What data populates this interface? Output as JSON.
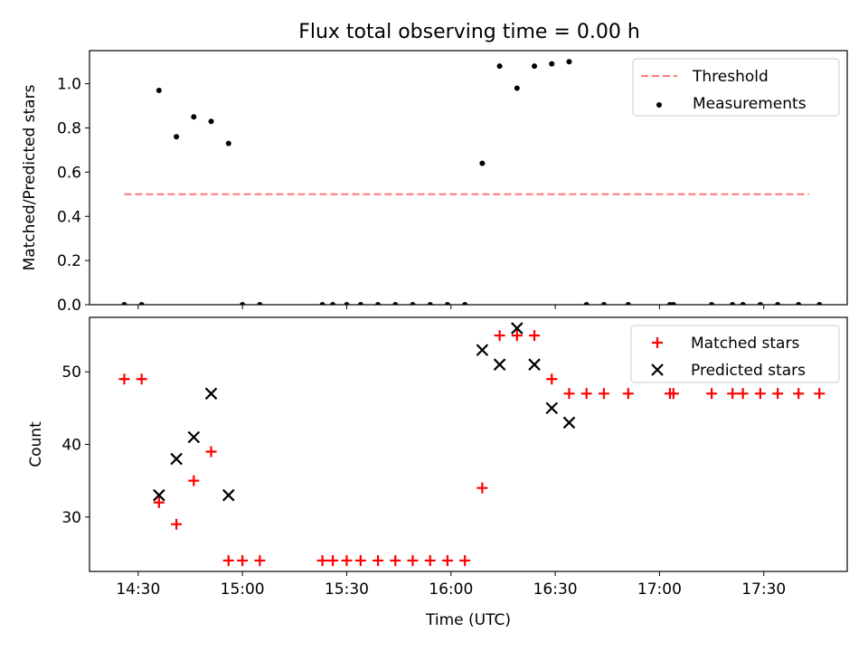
{
  "title": "Flux total observing time = 0.00 h",
  "xlabel": "Time (UTC)",
  "x_tick_labels": [
    "14:30",
    "15:00",
    "15:30",
    "16:00",
    "16:30",
    "17:00",
    "17:30"
  ],
  "chart_data": [
    {
      "type": "scatter",
      "ylabel": "Matched/Predicted stars",
      "xlim": [
        "14:16",
        "17:54"
      ],
      "ylim": [
        0,
        1.15
      ],
      "y_ticks": [
        0.0,
        0.2,
        0.4,
        0.6,
        0.8,
        1.0
      ],
      "legend_position": "top-right",
      "series": [
        {
          "name": "Threshold",
          "style": "dashed-line",
          "color": "#ff7f7f",
          "points": [
            {
              "x": "14:26",
              "y": 0.5
            },
            {
              "x": "17:43",
              "y": 0.5
            }
          ]
        },
        {
          "name": "Measurements",
          "style": "dot",
          "color": "#000000",
          "points": [
            {
              "x": "14:26",
              "y": 0.0
            },
            {
              "x": "14:31",
              "y": 0.0
            },
            {
              "x": "14:36",
              "y": 0.97
            },
            {
              "x": "14:41",
              "y": 0.76
            },
            {
              "x": "14:46",
              "y": 0.85
            },
            {
              "x": "14:51",
              "y": 0.83
            },
            {
              "x": "14:56",
              "y": 0.73
            },
            {
              "x": "15:00",
              "y": 0.0
            },
            {
              "x": "15:05",
              "y": 0.0
            },
            {
              "x": "15:23",
              "y": 0.0
            },
            {
              "x": "15:26",
              "y": 0.0
            },
            {
              "x": "15:30",
              "y": 0.0
            },
            {
              "x": "15:34",
              "y": 0.0
            },
            {
              "x": "15:39",
              "y": 0.0
            },
            {
              "x": "15:44",
              "y": 0.0
            },
            {
              "x": "15:49",
              "y": 0.0
            },
            {
              "x": "15:54",
              "y": 0.0
            },
            {
              "x": "15:59",
              "y": 0.0
            },
            {
              "x": "16:04",
              "y": 0.0
            },
            {
              "x": "16:09",
              "y": 0.64
            },
            {
              "x": "16:14",
              "y": 1.08
            },
            {
              "x": "16:19",
              "y": 0.98
            },
            {
              "x": "16:24",
              "y": 1.08
            },
            {
              "x": "16:29",
              "y": 1.09
            },
            {
              "x": "16:34",
              "y": 1.1
            },
            {
              "x": "16:39",
              "y": 0.0
            },
            {
              "x": "16:44",
              "y": 0.0
            },
            {
              "x": "16:51",
              "y": 0.0
            },
            {
              "x": "17:03",
              "y": 0.0
            },
            {
              "x": "17:04",
              "y": 0.0
            },
            {
              "x": "17:15",
              "y": 0.0
            },
            {
              "x": "17:21",
              "y": 0.0
            },
            {
              "x": "17:24",
              "y": 0.0
            },
            {
              "x": "17:29",
              "y": 0.0
            },
            {
              "x": "17:34",
              "y": 0.0
            },
            {
              "x": "17:40",
              "y": 0.0
            },
            {
              "x": "17:46",
              "y": 0.0
            }
          ]
        }
      ]
    },
    {
      "type": "scatter",
      "ylabel": "Count",
      "xlim": [
        "14:16",
        "17:54"
      ],
      "ylim": [
        22.5,
        57.5
      ],
      "y_ticks": [
        30,
        40,
        50
      ],
      "legend_position": "top-right",
      "series": [
        {
          "name": "Matched stars",
          "marker": "plus",
          "color": "#ff0000",
          "points": [
            {
              "x": "14:26",
              "y": 49
            },
            {
              "x": "14:31",
              "y": 49
            },
            {
              "x": "14:36",
              "y": 32
            },
            {
              "x": "14:41",
              "y": 29
            },
            {
              "x": "14:46",
              "y": 35
            },
            {
              "x": "14:51",
              "y": 39
            },
            {
              "x": "14:56",
              "y": 24
            },
            {
              "x": "15:00",
              "y": 24
            },
            {
              "x": "15:05",
              "y": 24
            },
            {
              "x": "15:23",
              "y": 24
            },
            {
              "x": "15:26",
              "y": 24
            },
            {
              "x": "15:30",
              "y": 24
            },
            {
              "x": "15:34",
              "y": 24
            },
            {
              "x": "15:39",
              "y": 24
            },
            {
              "x": "15:44",
              "y": 24
            },
            {
              "x": "15:49",
              "y": 24
            },
            {
              "x": "15:54",
              "y": 24
            },
            {
              "x": "15:59",
              "y": 24
            },
            {
              "x": "16:04",
              "y": 24
            },
            {
              "x": "16:09",
              "y": 34
            },
            {
              "x": "16:14",
              "y": 55
            },
            {
              "x": "16:19",
              "y": 55
            },
            {
              "x": "16:24",
              "y": 55
            },
            {
              "x": "16:29",
              "y": 49
            },
            {
              "x": "16:34",
              "y": 47
            },
            {
              "x": "16:39",
              "y": 47
            },
            {
              "x": "16:44",
              "y": 47
            },
            {
              "x": "16:51",
              "y": 47
            },
            {
              "x": "17:03",
              "y": 47
            },
            {
              "x": "17:04",
              "y": 47
            },
            {
              "x": "17:15",
              "y": 47
            },
            {
              "x": "17:21",
              "y": 47
            },
            {
              "x": "17:24",
              "y": 47
            },
            {
              "x": "17:29",
              "y": 47
            },
            {
              "x": "17:34",
              "y": 47
            },
            {
              "x": "17:40",
              "y": 47
            },
            {
              "x": "17:46",
              "y": 47
            }
          ]
        },
        {
          "name": "Predicted stars",
          "marker": "x",
          "color": "#000000",
          "points": [
            {
              "x": "14:36",
              "y": 33
            },
            {
              "x": "14:41",
              "y": 38
            },
            {
              "x": "14:46",
              "y": 41
            },
            {
              "x": "14:51",
              "y": 47
            },
            {
              "x": "14:56",
              "y": 33
            },
            {
              "x": "16:09",
              "y": 53
            },
            {
              "x": "16:14",
              "y": 51
            },
            {
              "x": "16:19",
              "y": 56
            },
            {
              "x": "16:24",
              "y": 51
            },
            {
              "x": "16:29",
              "y": 45
            },
            {
              "x": "16:34",
              "y": 43
            }
          ]
        }
      ]
    }
  ]
}
